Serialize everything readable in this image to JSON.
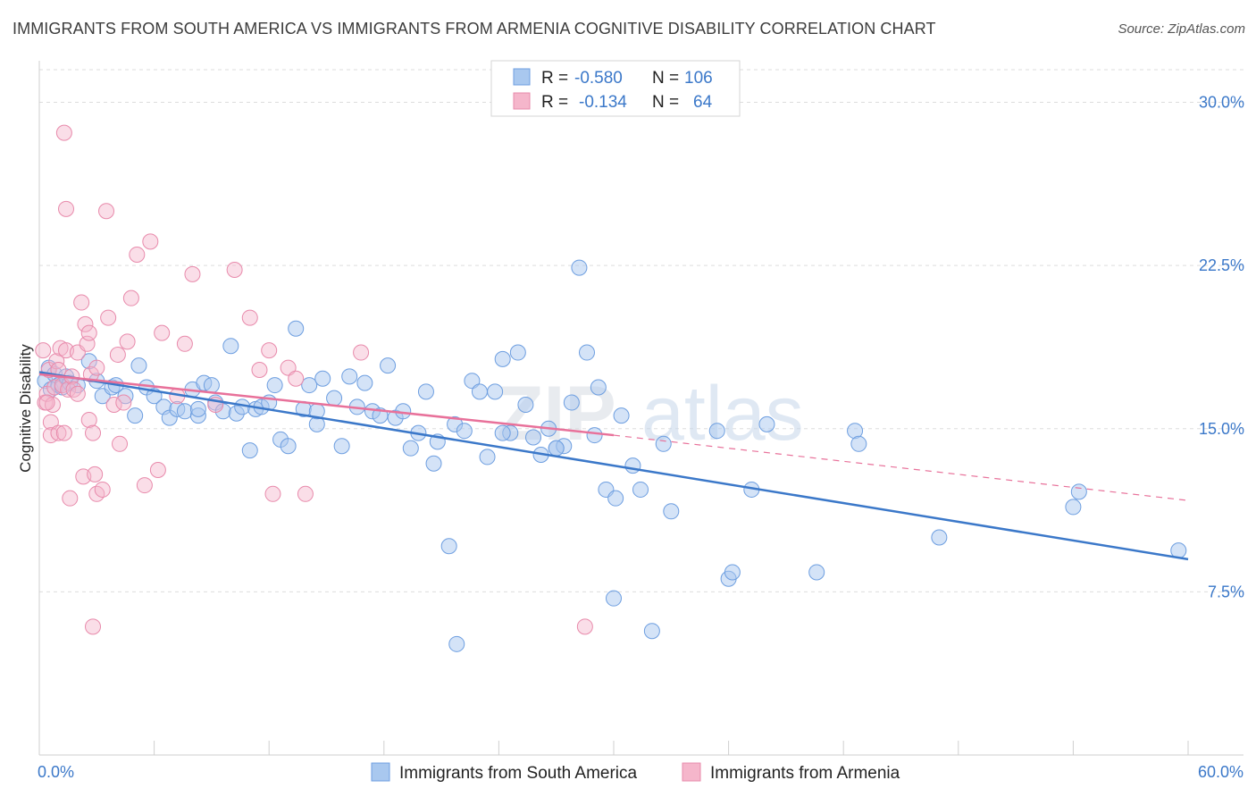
{
  "title": "IMMIGRANTS FROM SOUTH AMERICA VS IMMIGRANTS FROM ARMENIA COGNITIVE DISABILITY CORRELATION CHART",
  "source": "Source: ZipAtlas.com",
  "watermark": {
    "part1": "ZIP",
    "part2": "atlas"
  },
  "colors": {
    "blue": "#3b78c9",
    "blue_fill": "#a9c8ef",
    "pink": "#e8719a",
    "pink_fill": "#f5b6cb",
    "grid": "#dddddd"
  },
  "legend": {
    "r_label": "R =",
    "n_label": "N =",
    "rows": [
      {
        "r": "-0.580",
        "n": "106"
      },
      {
        "r": "-0.134",
        "n": "64"
      }
    ]
  },
  "chart_data": {
    "type": "scatter",
    "title": "IMMIGRANTS FROM SOUTH AMERICA VS IMMIGRANTS FROM ARMENIA COGNITIVE DISABILITY CORRELATION CHART",
    "xlabel": "",
    "ylabel": "Cognitive Disability",
    "xlim": [
      0,
      60
    ],
    "ylim": [
      0,
      31.5
    ],
    "x_tick_labels": [
      "0.0%",
      "60.0%"
    ],
    "y_ticks": [
      7.5,
      15.0,
      22.5,
      30.0
    ],
    "y_tick_labels": [
      "7.5%",
      "15.0%",
      "22.5%",
      "30.0%"
    ],
    "grid": true,
    "legend_position": "top-center",
    "series": [
      {
        "name": "Immigrants from South America",
        "r": -0.58,
        "n": 106,
        "trend": {
          "x0": 0,
          "y0": 17.6,
          "x1": 60,
          "y1": 9.0
        },
        "points": [
          [
            0.3,
            17.2
          ],
          [
            0.5,
            17.8
          ],
          [
            0.6,
            16.8
          ],
          [
            0.8,
            17.5
          ],
          [
            1.0,
            17.0
          ],
          [
            1.2,
            16.9
          ],
          [
            1.4,
            17.4
          ],
          [
            1.6,
            17.1
          ],
          [
            2.0,
            17.0
          ],
          [
            2.6,
            18.1
          ],
          [
            3.0,
            17.2
          ],
          [
            3.3,
            16.5
          ],
          [
            3.8,
            16.9
          ],
          [
            4.0,
            17.0
          ],
          [
            4.5,
            16.5
          ],
          [
            5.0,
            15.6
          ],
          [
            5.2,
            17.9
          ],
          [
            5.6,
            16.9
          ],
          [
            6.0,
            16.5
          ],
          [
            6.5,
            16.0
          ],
          [
            6.8,
            15.5
          ],
          [
            7.2,
            15.9
          ],
          [
            7.6,
            15.8
          ],
          [
            8.0,
            16.8
          ],
          [
            8.3,
            15.6
          ],
          [
            8.6,
            17.1
          ],
          [
            9.0,
            17.0
          ],
          [
            9.2,
            16.2
          ],
          [
            9.6,
            15.8
          ],
          [
            10.0,
            18.8
          ],
          [
            10.3,
            15.7
          ],
          [
            10.6,
            16.0
          ],
          [
            11.0,
            14.0
          ],
          [
            11.3,
            15.9
          ],
          [
            11.6,
            16.0
          ],
          [
            12.0,
            16.2
          ],
          [
            12.3,
            17.0
          ],
          [
            12.6,
            14.5
          ],
          [
            13.0,
            14.2
          ],
          [
            13.4,
            19.6
          ],
          [
            13.8,
            15.9
          ],
          [
            14.1,
            17.0
          ],
          [
            14.5,
            15.2
          ],
          [
            14.8,
            17.3
          ],
          [
            15.4,
            16.4
          ],
          [
            15.8,
            14.2
          ],
          [
            16.2,
            17.4
          ],
          [
            16.6,
            16.0
          ],
          [
            17.0,
            17.1
          ],
          [
            17.4,
            15.8
          ],
          [
            17.8,
            15.6
          ],
          [
            18.2,
            17.9
          ],
          [
            18.6,
            15.5
          ],
          [
            19.0,
            15.8
          ],
          [
            19.4,
            14.1
          ],
          [
            19.8,
            14.8
          ],
          [
            20.2,
            16.7
          ],
          [
            20.6,
            13.4
          ],
          [
            20.8,
            14.4
          ],
          [
            21.4,
            9.6
          ],
          [
            21.7,
            15.2
          ],
          [
            22.2,
            14.9
          ],
          [
            22.6,
            17.2
          ],
          [
            23.0,
            16.7
          ],
          [
            23.4,
            13.7
          ],
          [
            23.8,
            16.7
          ],
          [
            24.2,
            18.2
          ],
          [
            24.6,
            14.8
          ],
          [
            25.0,
            18.5
          ],
          [
            25.4,
            16.1
          ],
          [
            25.8,
            14.6
          ],
          [
            26.2,
            13.8
          ],
          [
            26.6,
            15.0
          ],
          [
            27.0,
            14.1
          ],
          [
            27.4,
            14.2
          ],
          [
            27.8,
            16.2
          ],
          [
            28.2,
            22.4
          ],
          [
            28.6,
            18.5
          ],
          [
            29.0,
            14.7
          ],
          [
            29.2,
            16.9
          ],
          [
            29.6,
            12.2
          ],
          [
            30.1,
            11.8
          ],
          [
            30.4,
            15.6
          ],
          [
            31.0,
            13.3
          ],
          [
            31.4,
            12.2
          ],
          [
            32.0,
            5.7
          ],
          [
            32.6,
            14.3
          ],
          [
            33.0,
            11.2
          ],
          [
            35.4,
            14.9
          ],
          [
            36.0,
            8.1
          ],
          [
            36.2,
            8.4
          ],
          [
            37.2,
            12.2
          ],
          [
            38.0,
            15.2
          ],
          [
            40.6,
            8.4
          ],
          [
            42.6,
            14.9
          ],
          [
            42.8,
            14.3
          ],
          [
            47.0,
            10.0
          ],
          [
            54.0,
            11.4
          ],
          [
            54.3,
            12.1
          ],
          [
            59.5,
            9.4
          ],
          [
            21.8,
            5.1
          ],
          [
            27.0,
            14.1
          ],
          [
            24.2,
            14.8
          ],
          [
            30.0,
            7.2
          ],
          [
            14.5,
            15.8
          ],
          [
            8.3,
            15.9
          ]
        ]
      },
      {
        "name": "Immigrants from Armenia",
        "r": -0.134,
        "n": 64,
        "trend": {
          "x0": 0,
          "y0": 17.5,
          "x1": 30,
          "y1": 14.7,
          "dash_x1": 60,
          "dash_y1": 11.7
        },
        "points": [
          [
            0.2,
            18.6
          ],
          [
            0.3,
            16.2
          ],
          [
            0.4,
            16.6
          ],
          [
            0.5,
            17.7
          ],
          [
            0.6,
            15.3
          ],
          [
            0.6,
            14.7
          ],
          [
            0.7,
            16.1
          ],
          [
            0.8,
            16.9
          ],
          [
            0.9,
            18.1
          ],
          [
            1.0,
            17.7
          ],
          [
            1.0,
            14.8
          ],
          [
            1.1,
            18.7
          ],
          [
            1.2,
            17.0
          ],
          [
            1.3,
            14.8
          ],
          [
            1.4,
            18.6
          ],
          [
            1.5,
            16.8
          ],
          [
            1.6,
            11.8
          ],
          [
            1.7,
            17.4
          ],
          [
            1.8,
            16.8
          ],
          [
            2.0,
            18.5
          ],
          [
            2.0,
            16.6
          ],
          [
            2.2,
            20.8
          ],
          [
            2.3,
            12.8
          ],
          [
            2.4,
            19.8
          ],
          [
            2.5,
            18.9
          ],
          [
            2.6,
            19.4
          ],
          [
            2.6,
            15.4
          ],
          [
            2.7,
            17.5
          ],
          [
            2.8,
            14.8
          ],
          [
            2.9,
            12.9
          ],
          [
            3.0,
            12.0
          ],
          [
            3.0,
            17.8
          ],
          [
            3.3,
            12.2
          ],
          [
            3.5,
            25.0
          ],
          [
            3.6,
            20.1
          ],
          [
            3.9,
            16.1
          ],
          [
            4.1,
            18.4
          ],
          [
            4.2,
            14.3
          ],
          [
            4.4,
            16.2
          ],
          [
            4.6,
            19.0
          ],
          [
            4.8,
            21.0
          ],
          [
            5.1,
            23.0
          ],
          [
            5.5,
            12.4
          ],
          [
            5.8,
            23.6
          ],
          [
            6.2,
            13.1
          ],
          [
            6.4,
            19.4
          ],
          [
            7.2,
            16.5
          ],
          [
            7.6,
            18.9
          ],
          [
            8.0,
            22.1
          ],
          [
            9.2,
            16.1
          ],
          [
            10.2,
            22.3
          ],
          [
            11.0,
            20.1
          ],
          [
            11.5,
            17.7
          ],
          [
            12.0,
            18.6
          ],
          [
            12.2,
            12.0
          ],
          [
            13.0,
            17.8
          ],
          [
            13.4,
            17.3
          ],
          [
            13.9,
            12.0
          ],
          [
            16.8,
            18.5
          ],
          [
            2.8,
            5.9
          ],
          [
            28.5,
            5.9
          ],
          [
            1.3,
            28.6
          ],
          [
            1.4,
            25.1
          ],
          [
            0.4,
            16.2
          ]
        ]
      }
    ]
  },
  "bottom_legend": [
    "Immigrants from South America",
    "Immigrants from Armenia"
  ]
}
